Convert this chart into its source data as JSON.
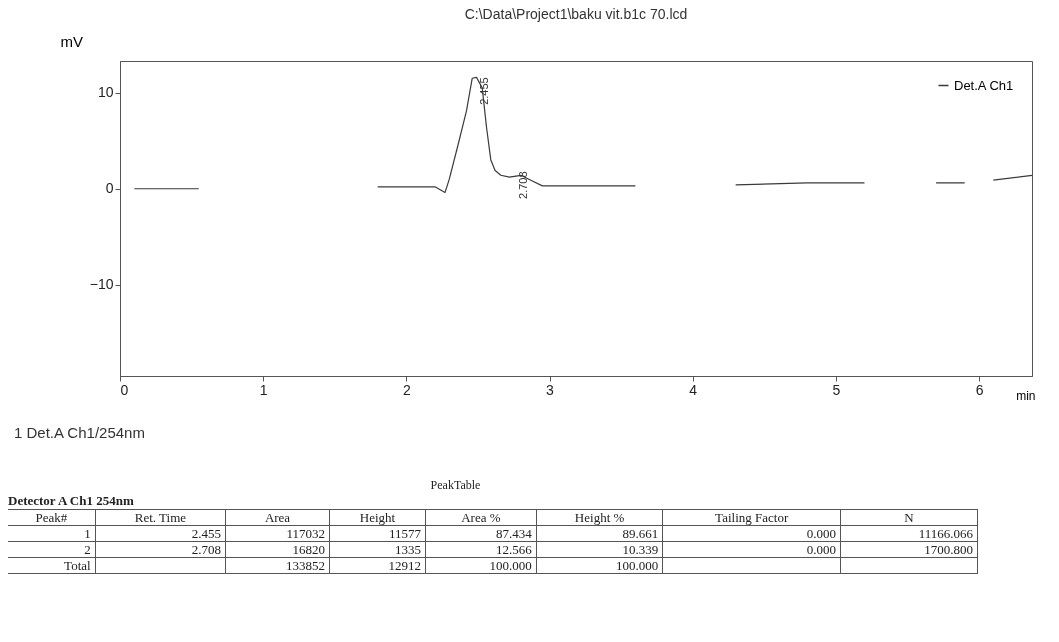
{
  "chart_data": {
    "type": "line",
    "title": "C:\\Data\\Project1\\baku vit.b1c 70.lcd",
    "xlabel": "min",
    "ylabel": "mV",
    "x": [
      0.1,
      0.55,
      0.6,
      1.8,
      2.2,
      2.27,
      2.3,
      2.36,
      2.42,
      2.46,
      2.49,
      2.53,
      2.56,
      2.59,
      2.62,
      2.66,
      2.72,
      2.8,
      2.88,
      2.95,
      3.3,
      3.6,
      3.7,
      4.3,
      4.8,
      5.2,
      5.3,
      5.7,
      5.9,
      6.0,
      6.1,
      6.37
    ],
    "series": [
      {
        "name": "Det.A Ch1",
        "color": "#3a3a3a",
        "values": [
          0,
          0,
          null,
          0.2,
          0.2,
          -0.4,
          1,
          4.5,
          8.1,
          11.5,
          11.6,
          10.5,
          6.4,
          3,
          1.9,
          1.4,
          1.2,
          1.4,
          0.8,
          0.3,
          0.3,
          0.3,
          null,
          0.4,
          0.6,
          0.6,
          null,
          0.6,
          0.6,
          null,
          0.9,
          1.4
        ]
      }
    ],
    "xlim": [
      0,
      6.37
    ],
    "xticks": [
      0,
      1,
      2,
      3,
      4,
      5,
      6
    ],
    "ylim": [
      -19.5,
      13.3
    ],
    "yticks": [
      -10,
      0,
      10
    ],
    "grid": false,
    "legend": "top right",
    "line_style": "solid",
    "annotations": [
      {
        "text": "2.455",
        "x": 2.49,
        "y": 11.6
      },
      {
        "text": "2.708",
        "x": 2.76,
        "y": 1.8
      },
      "1  Det.A Ch1/254nm",
      "PeakTable",
      "Detector A Ch1 254nm",
      "Peak#",
      "Ret. Time",
      "Area",
      "Height",
      "Area %",
      "Height %",
      "Tailing Factor",
      "N",
      "1",
      "2.455",
      "117032",
      "11577",
      "87.434",
      "89.661",
      "0.000",
      "11166.066",
      "2",
      "2.708",
      "16820",
      "1335",
      "12.566",
      "10.339",
      "0.000",
      "1700.800",
      "Total",
      null,
      "133852",
      "12912",
      "100.000",
      "100.000",
      null,
      null
    ]
  }
}
